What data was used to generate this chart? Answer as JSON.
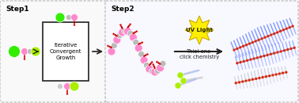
{
  "fig_width": 3.78,
  "fig_height": 1.3,
  "dpi": 100,
  "bg_color": "#ffffff",
  "step1_label": "Step1",
  "step2_label": "Step2",
  "box_text": "Iterative\nConvergent\nGrowth",
  "uv_text": "UV Light",
  "reaction_text": "Thiol-ene\nclick chemistry",
  "colors": {
    "green": "#33ee00",
    "pink": "#ff88cc",
    "gray": "#bbbbbb",
    "gray2": "#cccccc",
    "red": "#dd0000",
    "yellow_green": "#aaee00",
    "blue_bristle": "#6677ff",
    "blue_bristle2": "#8899ff",
    "blue_dark": "#4455cc",
    "gray_bristle": "#bbbbcc",
    "dashed_border": "#aaaaaa",
    "arrow": "#222222",
    "uv_yellow": "#ffee00",
    "uv_border": "#ccaa00",
    "box_border": "#333333"
  }
}
